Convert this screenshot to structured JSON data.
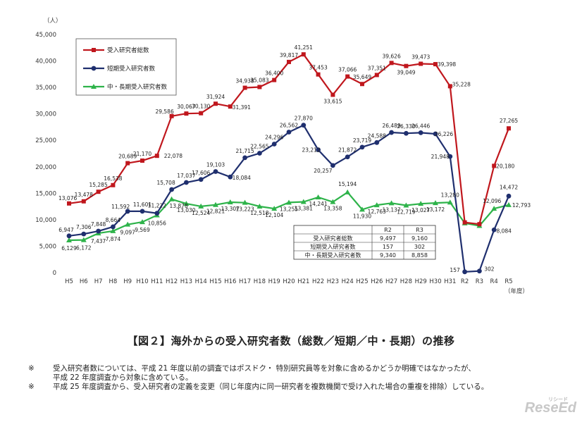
{
  "chart_data": {
    "type": "line",
    "unit_label": "（人）",
    "x_unit_label": "（年度）",
    "categories": [
      "H5",
      "H6",
      "H7",
      "H8",
      "H9",
      "H10",
      "H11",
      "H12",
      "H13",
      "H14",
      "H15",
      "H16",
      "H17",
      "H18",
      "H19",
      "H20",
      "H21",
      "H22",
      "H23",
      "H24",
      "H25",
      "H26",
      "H27",
      "H28",
      "H29",
      "H30",
      "H31",
      "R2",
      "R3",
      "R4",
      "R5"
    ],
    "ylim": [
      0,
      45000
    ],
    "yticks": [
      0,
      5000,
      10000,
      15000,
      20000,
      25000,
      30000,
      35000,
      40000,
      45000
    ],
    "ytick_labels": [
      "0",
      "5,000",
      "10,000",
      "15,000",
      "20,000",
      "25,000",
      "30,000",
      "35,000",
      "40,000",
      "45,000"
    ],
    "grid": false,
    "legend_position": "top-left",
    "series": [
      {
        "name": "受入研究者総数",
        "color": "#c0171d",
        "marker": "square",
        "values": [
          13076,
          13478,
          15285,
          16538,
          20689,
          21170,
          22078,
          29586,
          30067,
          30130,
          31924,
          31391,
          34938,
          35083,
          36400,
          39817,
          41251,
          37453,
          33615,
          37066,
          35649,
          37351,
          39626,
          39049,
          39473,
          39398,
          35228,
          9497,
          9160,
          20180,
          27265
        ],
        "labels": [
          "13,076",
          "13,478",
          "15,285",
          "16,538",
          "20,689",
          "21,170",
          "22,078",
          "29,586",
          "30,067",
          "30,130",
          "31,924",
          "31,391",
          "34,938",
          "35,083",
          "36,400",
          "39,817",
          "41,251",
          "37,453",
          "33,615",
          "37,066",
          "35,649",
          "37,351",
          "39,626",
          "39,049",
          "39,473",
          "39,398",
          "35,228",
          "",
          "",
          "20,180",
          "27,265"
        ]
      },
      {
        "name": "短期受入研究者数",
        "color": "#1f2f6e",
        "marker": "circle",
        "values": [
          6947,
          7306,
          7848,
          8664,
          11592,
          11601,
          11222,
          15708,
          17037,
          17606,
          19103,
          18084,
          21715,
          22565,
          24296,
          26562,
          27870,
          23212,
          20257,
          21872,
          23719,
          24588,
          26489,
          26330,
          26446,
          26226,
          21948,
          157,
          302,
          8084,
          14472
        ],
        "labels": [
          "6,947",
          "7,306",
          "7,848",
          "8,664",
          "11,592",
          "11,601",
          "11,222",
          "15,708",
          "17,037",
          "17,606",
          "19,103",
          "18,084",
          "21,715",
          "22,565",
          "24,296",
          "26,562",
          "27,870",
          "23,212",
          "20,257",
          "21,872",
          "23,719",
          "24,588",
          "26,489",
          "26,330",
          "26,446",
          "26,226",
          "21,948",
          "157",
          "302",
          "8,084",
          "14,472"
        ]
      },
      {
        "name": "中・長期受入研究者数",
        "color": "#2eb34a",
        "marker": "triangle",
        "values": [
          6129,
          6172,
          7437,
          7874,
          9097,
          9569,
          10856,
          13878,
          13030,
          12524,
          12821,
          13307,
          13223,
          12518,
          12104,
          13255,
          13381,
          14241,
          13358,
          15194,
          11930,
          12763,
          13137,
          12719,
          13027,
          13172,
          13280,
          9340,
          8858,
          12096,
          12793
        ],
        "labels": [
          "6,129",
          "6,172",
          "7,437",
          "7,874",
          "9,097",
          "9,569",
          "10,856",
          "13,878",
          "13,030",
          "12,524",
          "12,821",
          "13,307",
          "13,223",
          "12,518",
          "12,104",
          "13,255",
          "13,381",
          "14,241",
          "13,358",
          "15,194",
          "11,930",
          "12,763",
          "13,137",
          "12,719",
          "13,027",
          "13,172",
          "13,280",
          "",
          "",
          "12,096",
          "12,793"
        ]
      }
    ],
    "inset_table": {
      "headers": [
        "",
        "R2",
        "R3"
      ],
      "rows": [
        [
          "受入研究者総数",
          "9,497",
          "9,160"
        ],
        [
          "短期受入研究者数",
          "157",
          "302"
        ],
        [
          "中・長期受入研究者数",
          "9,340",
          "8,858"
        ]
      ]
    }
  },
  "caption": "【図２】海外からの受入研究者数（総数／短期／中・長期）の推移",
  "notes": [
    {
      "mark": "※",
      "lines": [
        "受入研究者数については、平成 21 年度以前の調査ではポスドク・ 特別研究員等を対象に含めるかどうか明確ではなかったが、",
        "平成 22 年度調査から対象に含めている。"
      ]
    },
    {
      "mark": "※",
      "lines": [
        "平成 25 年度調査から、受入研究者の定義を変更（同じ年度内に同一研究者を複数機関で受け入れた場合の重複を排除）している。"
      ]
    }
  ],
  "logo": {
    "small": "リシード",
    "text": "ReseEd"
  }
}
